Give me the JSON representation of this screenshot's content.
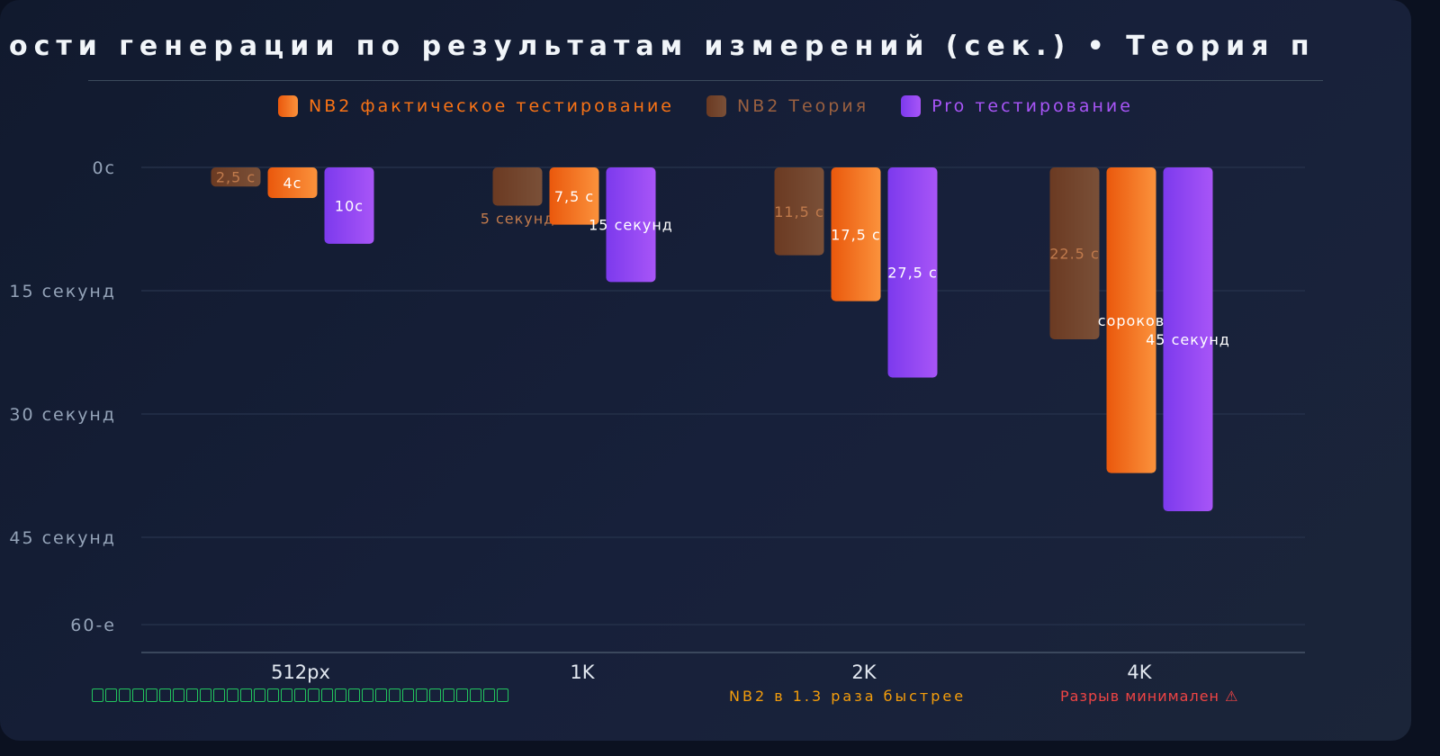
{
  "chart_data": {
    "type": "bar",
    "title": "ости генерации по результатам измерений (сек.) • Теория п",
    "categories": [
      "512px",
      "1K",
      "2K",
      "4K"
    ],
    "series": [
      {
        "name": "NB2 Теория",
        "color": "#6b3a22",
        "values": [
          2.5,
          5,
          11.5,
          22.5
        ],
        "labels": [
          "2,5 с",
          "5 секунд",
          "11,5 с",
          "22.5 с"
        ]
      },
      {
        "name": "NB2 фактическое тестирование",
        "color": "#f97316",
        "values": [
          4,
          7.5,
          17.5,
          40
        ],
        "labels": [
          "4с",
          "7,5 с",
          "17,5 с",
          "сороков"
        ]
      },
      {
        "name": "Pro тестирование",
        "color": "#9333ea",
        "values": [
          10,
          15,
          27.5,
          45
        ],
        "labels": [
          "10с",
          "15 секунд",
          "27,5 с",
          "45 секунд"
        ]
      }
    ],
    "y_ticks": [
      "0с",
      "15 секунд",
      "30 секунд",
      "45 секунд",
      "60-е"
    ],
    "ylim": [
      0,
      60
    ],
    "y_inverted": true,
    "grid": true,
    "legend_placement": "top-center",
    "annotations": [
      {
        "text": "NB2 в 1.3 раза быстрее",
        "color": "#f59e0b"
      },
      {
        "text": "Разрыв минимален ⚠",
        "color": "#ef4444"
      }
    ]
  }
}
